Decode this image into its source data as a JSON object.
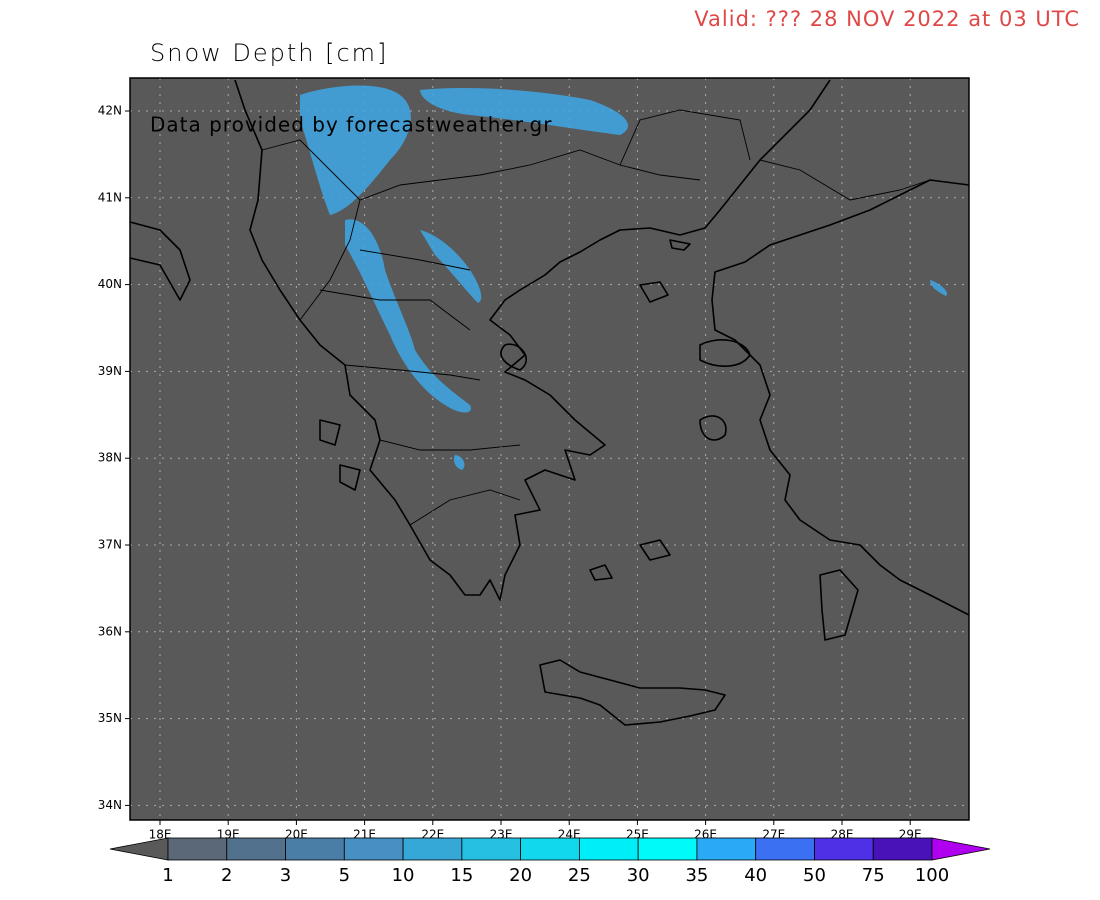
{
  "header": {
    "valid": "Valid: ??? 28 NOV 2022 at 03 UTC",
    "title": "Snow Depth  [cm]",
    "credit": "Data provided by forecastweather.gr"
  },
  "lat_labels": [
    "42N",
    "41N",
    "40N",
    "39N",
    "38N",
    "37N",
    "36N",
    "35N",
    "34N"
  ],
  "lon_labels": [
    "18E",
    "19E",
    "20E",
    "21E",
    "22E",
    "23E",
    "24E",
    "25E",
    "26E",
    "27E",
    "28E",
    "29E"
  ],
  "colorbar": {
    "levels": [
      1,
      2,
      3,
      5,
      10,
      15,
      20,
      25,
      30,
      35,
      40,
      50,
      75,
      100
    ],
    "colors": [
      "#5b6878",
      "#52718c",
      "#4a7ea6",
      "#4690c4",
      "#36a8d8",
      "#26c0e2",
      "#12d8ee",
      "#00eef8",
      "#00fafa",
      "#2aaaf6",
      "#3c70f2",
      "#5030e6",
      "#4812b8",
      "#7a12d8"
    ],
    "under_color": "#595959",
    "over_color": "#b000f0"
  }
}
